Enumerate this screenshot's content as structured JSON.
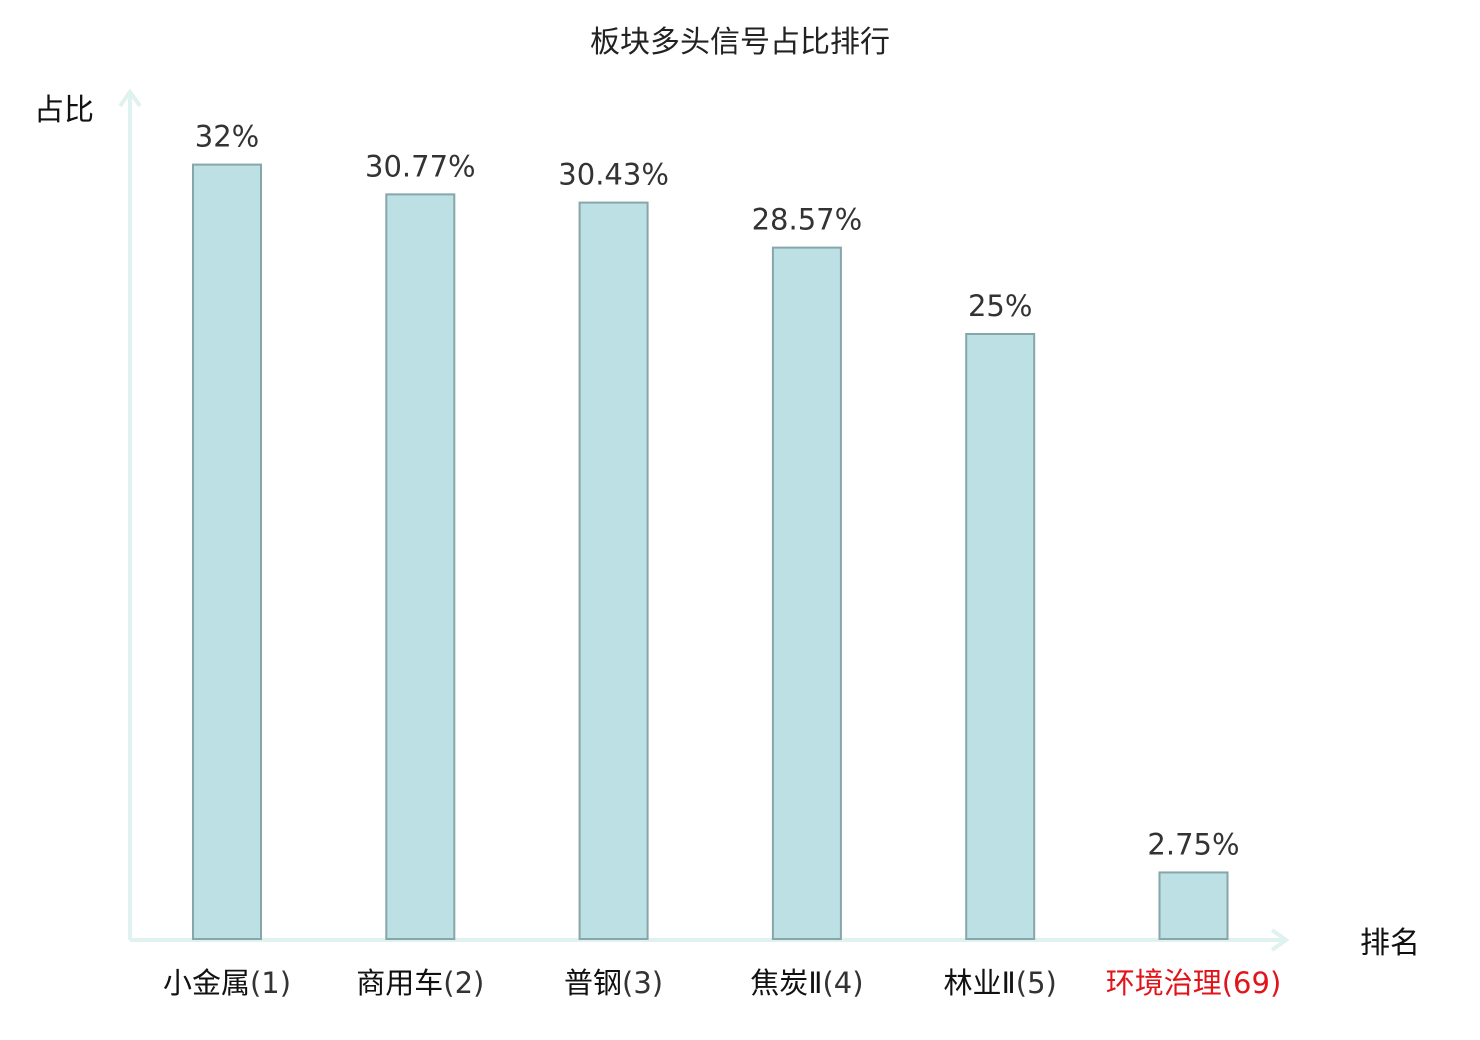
{
  "chart_data": {
    "type": "bar",
    "title": "板块多头信号占比排行",
    "xlabel": "排名",
    "ylabel": "占比",
    "ylim": [
      0,
      35
    ],
    "categories": [
      {
        "name": "小金属",
        "rank": "(1)",
        "highlight": false
      },
      {
        "name": "商用车",
        "rank": "(2)",
        "highlight": false
      },
      {
        "name": "普钢",
        "rank": "(3)",
        "highlight": false
      },
      {
        "name": "焦炭Ⅱ",
        "rank": "(4)",
        "highlight": false
      },
      {
        "name": "林业Ⅱ",
        "rank": "(5)",
        "highlight": false
      },
      {
        "name": "环境治理",
        "rank": "(69)",
        "highlight": true
      }
    ],
    "values": [
      32,
      30.77,
      30.43,
      28.57,
      25,
      2.75
    ],
    "value_labels": [
      "32%",
      "30.77%",
      "30.43%",
      "28.57%",
      "25%",
      "2.75%"
    ],
    "grid": false,
    "colors": {
      "bar_fill": "#bce0e3",
      "bar_stroke": "#86a6a9",
      "axis": "#dff2ef",
      "highlight": "#e0141a",
      "category_text": "#111111",
      "rank_text": "#333333"
    }
  }
}
